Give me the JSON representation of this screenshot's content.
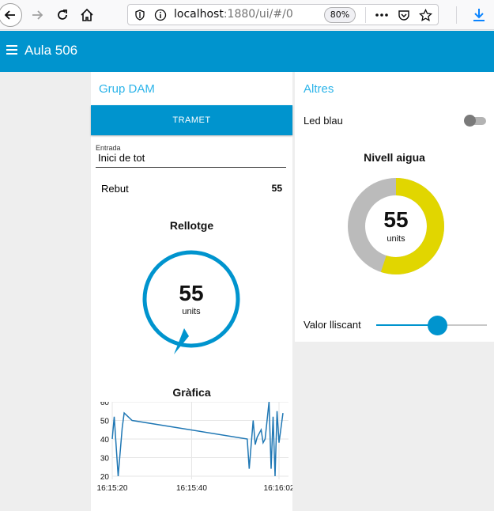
{
  "browser": {
    "url_host": "localhost",
    "url_rest": ":1880/ui/#/0",
    "zoom": "80%"
  },
  "app": {
    "title": "Aula 506",
    "header_color": "#0094ce"
  },
  "left_group": {
    "title": "Grup DAM",
    "button_label": "TRAMET",
    "input": {
      "label": "Entrada",
      "value": "Inici de tot"
    },
    "text_row": {
      "label": "Rebut",
      "value": "55"
    },
    "donut_gauge": {
      "title": "Rellotge",
      "value": "55",
      "units": "units",
      "min": 0,
      "max": 100,
      "color": "#0094ce"
    },
    "chart_title": "Gràfica"
  },
  "right_group": {
    "title": "Altres",
    "switch": {
      "label": "Led blau",
      "state": "off"
    },
    "level_gauge": {
      "title": "Nivell aigua",
      "value": "55",
      "units": "units",
      "min": 0,
      "max": 100,
      "fill_color": "#e1d600",
      "track_color": "#bbbbbb"
    },
    "slider": {
      "label": "Valor lliscant",
      "value": 55,
      "min": 0,
      "max": 100
    }
  },
  "chart_data": {
    "type": "line",
    "title": "Gràfica",
    "xlabel": "",
    "ylabel": "",
    "ylim": [
      20,
      60
    ],
    "yticks": [
      60,
      50,
      40,
      30,
      20
    ],
    "xlim": [
      0,
      42
    ],
    "xticks": [
      {
        "x": 0,
        "label": "16:15:20"
      },
      {
        "x": 20,
        "label": "16:15:40"
      },
      {
        "x": 42,
        "label": "16:16:02"
      }
    ],
    "grid": true,
    "series": [
      {
        "color": "#1f77b4",
        "points": [
          [
            0,
            40
          ],
          [
            0.5,
            52
          ],
          [
            1.5,
            20
          ],
          [
            2.5,
            46
          ],
          [
            3,
            54
          ],
          [
            5,
            50
          ],
          [
            34,
            40
          ],
          [
            34.5,
            24
          ],
          [
            35.5,
            50
          ],
          [
            36,
            37
          ],
          [
            36.5,
            41
          ],
          [
            37.5,
            45
          ],
          [
            38,
            38
          ],
          [
            38.5,
            40
          ],
          [
            39.5,
            60
          ],
          [
            40,
            24
          ],
          [
            40.5,
            52
          ],
          [
            41,
            20
          ],
          [
            41.5,
            55
          ],
          [
            42,
            38
          ],
          [
            43,
            54
          ]
        ]
      }
    ]
  }
}
